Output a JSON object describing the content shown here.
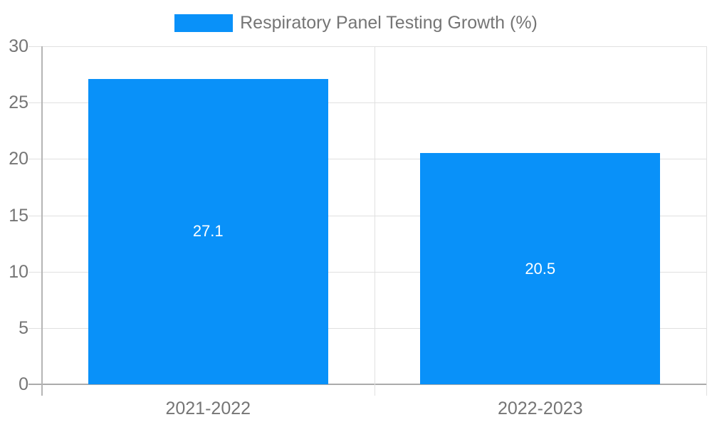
{
  "chart_data": {
    "type": "bar",
    "title": "Respiratory Panel Testing Growth (%)",
    "categories": [
      "2021-2022",
      "2022-2023"
    ],
    "values": [
      27.1,
      20.5
    ],
    "bar_labels": [
      "27.1",
      "20.5"
    ],
    "ylim": [
      0,
      30
    ],
    "yticks": [
      0,
      5,
      10,
      15,
      20,
      25,
      30
    ],
    "grid": true,
    "legend_position": "top"
  },
  "colors": {
    "bar": "#0991f9",
    "bar_label": "#ffffff",
    "text": "#757575",
    "gridline": "#e0e0e0",
    "zero_line": "#ababab",
    "axis_line": "#b5b5b5"
  }
}
